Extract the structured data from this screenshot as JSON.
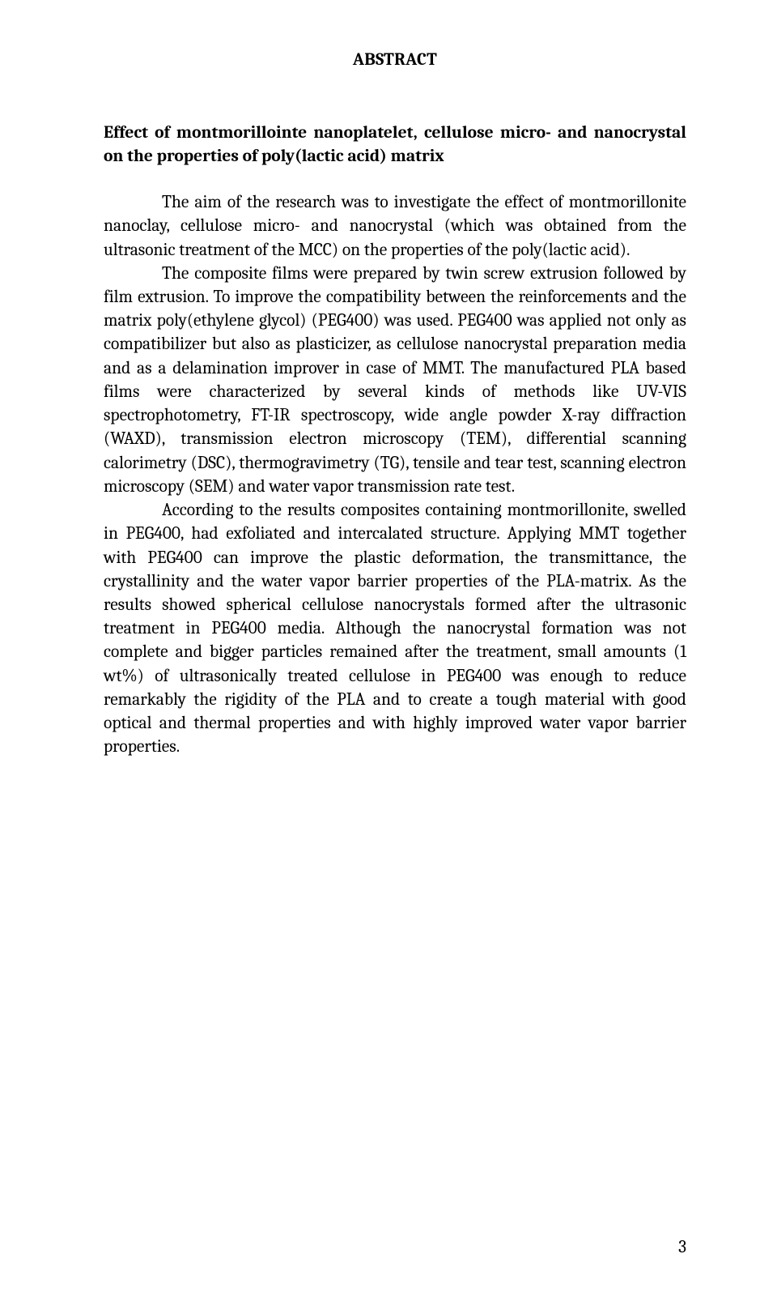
{
  "section_heading": "ABSTRACT",
  "title": "Effect of montmorillointe nanoplatelet, cellulose micro- and nanocrystal on the properties of poly(lactic acid) matrix",
  "intro_sentence": "The aim of the research was to investigate the effect of montmorillonite nanoclay, cellulose micro- and nanocrystal (which was obtained from the ultrasonic treatment of the MCC) on the properties of the poly(lactic acid).",
  "paragraph2": "The composite films were prepared by twin screw extrusion followed by film extrusion. To improve the compatibility between the reinforcements and the matrix poly(ethylene glycol) (PEG400) was used. PEG400 was applied not only as compatibilizer but also as plasticizer, as cellulose nanocrystal preparation media and as a delamination improver in case of MMT. The manufactured PLA based films were characterized by several kinds of methods like UV-VIS spectrophotometry, FT-IR spectroscopy, wide angle powder X-ray diffraction (WAXD), transmission electron microscopy (TEM), differential scanning calorimetry (DSC), thermogravimetry (TG), tensile and tear test, scanning electron microscopy (SEM) and water vapor transmission rate test.",
  "paragraph3": "According to the results composites containing montmorillonite, swelled in PEG400, had exfoliated and intercalated structure. Applying MMT together with PEG400 can improve the plastic deformation, the transmittance, the crystallinity and the water vapor barrier properties of the PLA-matrix. As the results showed spherical cellulose nanocrystals formed after the ultrasonic treatment in PEG400 media. Although the nanocrystal formation was not complete and bigger particles remained after the treatment, small amounts (1 wt%) of ultrasonically treated cellulose in PEG400 was enough to reduce remarkably the rigidity of the PLA and to create a tough material with good optical and thermal properties and with highly improved water vapor barrier properties.",
  "page_number": "3"
}
